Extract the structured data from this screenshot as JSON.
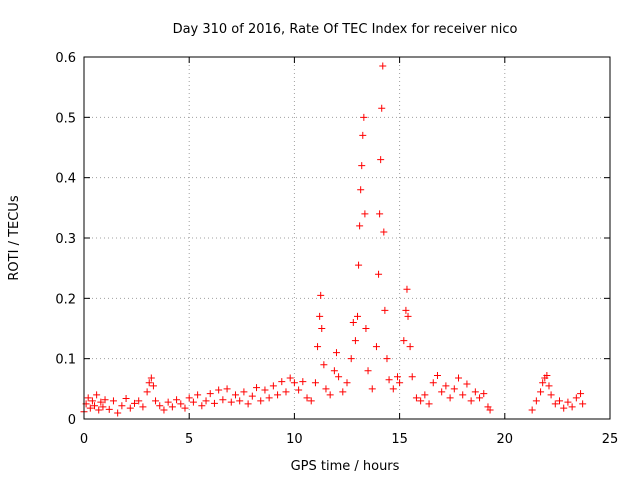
{
  "chart_data": {
    "type": "scatter",
    "title": "Day 310 of 2016, Rate Of TEC Index for receiver nico",
    "xlabel": "GPS time / hours",
    "ylabel": "ROTI / TECUs",
    "xlim": [
      0,
      25
    ],
    "ylim": [
      0,
      0.6
    ],
    "xticks": [
      0,
      5,
      10,
      15,
      20,
      25
    ],
    "xtick_labels": [
      "0",
      "5",
      "10",
      "15",
      "20",
      "25"
    ],
    "yticks": [
      0,
      0.1,
      0.2,
      0.3,
      0.4,
      0.5,
      0.6
    ],
    "ytick_labels": [
      "0",
      "0.1",
      "0.2",
      "0.3",
      "0.4",
      "0.5",
      "0.6"
    ],
    "grid": true,
    "marker": "+",
    "color": "#ff0000",
    "series": [
      {
        "name": "ROTI",
        "points": [
          [
            0.0,
            0.012
          ],
          [
            0.1,
            0.025
          ],
          [
            0.2,
            0.035
          ],
          [
            0.3,
            0.018
          ],
          [
            0.4,
            0.03
          ],
          [
            0.5,
            0.022
          ],
          [
            0.6,
            0.04
          ],
          [
            0.7,
            0.015
          ],
          [
            0.8,
            0.028
          ],
          [
            0.9,
            0.02
          ],
          [
            1.0,
            0.032
          ],
          [
            1.2,
            0.016
          ],
          [
            1.4,
            0.03
          ],
          [
            1.6,
            0.01
          ],
          [
            1.8,
            0.022
          ],
          [
            2.0,
            0.034
          ],
          [
            2.2,
            0.018
          ],
          [
            2.4,
            0.026
          ],
          [
            2.6,
            0.03
          ],
          [
            2.8,
            0.02
          ],
          [
            3.0,
            0.045
          ],
          [
            3.1,
            0.06
          ],
          [
            3.2,
            0.068
          ],
          [
            3.3,
            0.055
          ],
          [
            3.4,
            0.03
          ],
          [
            3.6,
            0.022
          ],
          [
            3.8,
            0.015
          ],
          [
            4.0,
            0.028
          ],
          [
            4.2,
            0.02
          ],
          [
            4.4,
            0.032
          ],
          [
            4.6,
            0.025
          ],
          [
            4.8,
            0.018
          ],
          [
            5.0,
            0.035
          ],
          [
            5.2,
            0.028
          ],
          [
            5.4,
            0.04
          ],
          [
            5.6,
            0.022
          ],
          [
            5.8,
            0.03
          ],
          [
            6.0,
            0.042
          ],
          [
            6.2,
            0.026
          ],
          [
            6.4,
            0.048
          ],
          [
            6.6,
            0.032
          ],
          [
            6.8,
            0.05
          ],
          [
            7.0,
            0.028
          ],
          [
            7.2,
            0.04
          ],
          [
            7.4,
            0.03
          ],
          [
            7.6,
            0.045
          ],
          [
            7.8,
            0.025
          ],
          [
            8.0,
            0.038
          ],
          [
            8.2,
            0.052
          ],
          [
            8.4,
            0.03
          ],
          [
            8.6,
            0.048
          ],
          [
            8.8,
            0.035
          ],
          [
            9.0,
            0.055
          ],
          [
            9.2,
            0.04
          ],
          [
            9.4,
            0.062
          ],
          [
            9.6,
            0.045
          ],
          [
            9.8,
            0.068
          ],
          [
            10.0,
            0.06
          ],
          [
            10.2,
            0.048
          ],
          [
            10.4,
            0.062
          ],
          [
            10.6,
            0.035
          ],
          [
            10.8,
            0.03
          ],
          [
            11.0,
            0.06
          ],
          [
            11.1,
            0.12
          ],
          [
            11.2,
            0.17
          ],
          [
            11.25,
            0.205
          ],
          [
            11.3,
            0.15
          ],
          [
            11.4,
            0.09
          ],
          [
            11.5,
            0.05
          ],
          [
            11.7,
            0.04
          ],
          [
            11.9,
            0.08
          ],
          [
            12.0,
            0.11
          ],
          [
            12.1,
            0.07
          ],
          [
            12.3,
            0.045
          ],
          [
            12.5,
            0.06
          ],
          [
            12.7,
            0.1
          ],
          [
            12.8,
            0.16
          ],
          [
            12.9,
            0.13
          ],
          [
            13.0,
            0.17
          ],
          [
            13.05,
            0.255
          ],
          [
            13.1,
            0.32
          ],
          [
            13.15,
            0.38
          ],
          [
            13.2,
            0.42
          ],
          [
            13.25,
            0.47
          ],
          [
            13.3,
            0.5
          ],
          [
            13.35,
            0.34
          ],
          [
            13.4,
            0.15
          ],
          [
            13.5,
            0.08
          ],
          [
            13.7,
            0.05
          ],
          [
            13.9,
            0.12
          ],
          [
            14.0,
            0.24
          ],
          [
            14.05,
            0.34
          ],
          [
            14.1,
            0.43
          ],
          [
            14.15,
            0.515
          ],
          [
            14.2,
            0.585
          ],
          [
            14.25,
            0.31
          ],
          [
            14.3,
            0.18
          ],
          [
            14.4,
            0.1
          ],
          [
            14.5,
            0.065
          ],
          [
            14.7,
            0.05
          ],
          [
            14.9,
            0.07
          ],
          [
            15.0,
            0.06
          ],
          [
            15.2,
            0.13
          ],
          [
            15.3,
            0.18
          ],
          [
            15.35,
            0.215
          ],
          [
            15.4,
            0.17
          ],
          [
            15.5,
            0.12
          ],
          [
            15.6,
            0.07
          ],
          [
            15.8,
            0.035
          ],
          [
            16.0,
            0.03
          ],
          [
            16.2,
            0.04
          ],
          [
            16.4,
            0.025
          ],
          [
            16.6,
            0.06
          ],
          [
            16.8,
            0.072
          ],
          [
            17.0,
            0.045
          ],
          [
            17.2,
            0.055
          ],
          [
            17.4,
            0.035
          ],
          [
            17.6,
            0.05
          ],
          [
            17.8,
            0.068
          ],
          [
            18.0,
            0.04
          ],
          [
            18.2,
            0.058
          ],
          [
            18.4,
            0.03
          ],
          [
            18.6,
            0.045
          ],
          [
            18.8,
            0.035
          ],
          [
            19.0,
            0.042
          ],
          [
            19.2,
            0.02
          ],
          [
            19.3,
            0.015
          ],
          [
            21.3,
            0.015
          ],
          [
            21.5,
            0.03
          ],
          [
            21.7,
            0.045
          ],
          [
            21.8,
            0.06
          ],
          [
            21.9,
            0.068
          ],
          [
            22.0,
            0.072
          ],
          [
            22.1,
            0.055
          ],
          [
            22.2,
            0.04
          ],
          [
            22.4,
            0.025
          ],
          [
            22.6,
            0.03
          ],
          [
            22.8,
            0.018
          ],
          [
            23.0,
            0.028
          ],
          [
            23.2,
            0.02
          ],
          [
            23.4,
            0.035
          ],
          [
            23.6,
            0.042
          ],
          [
            23.7,
            0.025
          ]
        ]
      }
    ]
  }
}
